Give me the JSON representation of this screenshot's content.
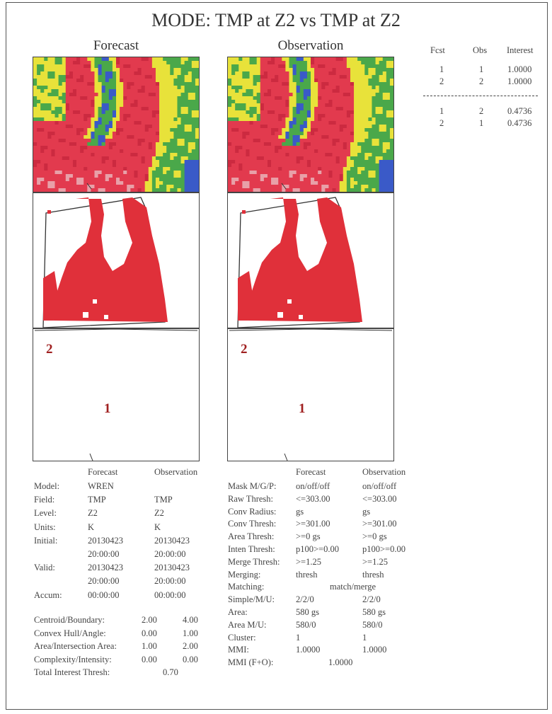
{
  "title": "MODE: TMP at Z2 vs TMP at Z2",
  "panels": {
    "forecast_title": "Forecast",
    "observation_title": "Observation"
  },
  "object_labels": {
    "forecast": [
      "2",
      "1"
    ],
    "observation": [
      "2",
      "1"
    ]
  },
  "interest_table": {
    "headers": [
      "Fcst",
      "Obs",
      "Interest"
    ],
    "matched": [
      [
        "1",
        "1",
        "1.0000"
      ],
      [
        "2",
        "2",
        "1.0000"
      ]
    ],
    "unmatched": [
      [
        "1",
        "2",
        "0.4736"
      ],
      [
        "2",
        "1",
        "0.4736"
      ]
    ]
  },
  "left_table": {
    "col_headers": [
      "Forecast",
      "Observation"
    ],
    "rows": [
      [
        "Model:",
        "WREN",
        ""
      ],
      [
        "Field:",
        "TMP",
        "TMP"
      ],
      [
        "Level:",
        "Z2",
        "Z2"
      ],
      [
        "Units:",
        "K",
        "K"
      ],
      [
        "Initial:",
        "20130423",
        "20130423"
      ],
      [
        "",
        "20:00:00",
        "20:00:00"
      ],
      [
        "Valid:",
        "20130423",
        "20130423"
      ],
      [
        "",
        "20:00:00",
        "20:00:00"
      ],
      [
        "Accum:",
        "00:00:00",
        "00:00:00"
      ]
    ],
    "weights": [
      [
        "Centroid/Boundary:",
        "2.00",
        "4.00"
      ],
      [
        "Convex Hull/Angle:",
        "0.00",
        "1.00"
      ],
      [
        "Area/Intersection Area:",
        "1.00",
        "2.00"
      ],
      [
        "Complexity/Intensity:",
        "0.00",
        "0.00"
      ]
    ],
    "total_interest": [
      "Total Interest Thresh:",
      "0.70"
    ]
  },
  "right_table": {
    "col_headers": [
      "Forecast",
      "Observation"
    ],
    "rows": [
      [
        "Mask M/G/P:",
        "on/off/off",
        "on/off/off"
      ],
      [
        "Raw Thresh:",
        "<=303.00",
        "<=303.00"
      ],
      [
        "Conv Radius:",
        "gs",
        "gs"
      ],
      [
        "Conv Thresh:",
        ">=301.00",
        ">=301.00"
      ],
      [
        "Area Thresh:",
        ">=0 gs",
        ">=0 gs"
      ],
      [
        "Inten Thresh:",
        "p100>=0.00",
        "p100>=0.00"
      ],
      [
        "Merge Thresh:",
        ">=1.25",
        ">=1.25"
      ],
      [
        "Merging:",
        "thresh",
        "thresh"
      ],
      [
        "Matching:",
        "match/merge",
        ""
      ],
      [
        "Simple/M/U:",
        "2/2/0",
        "2/2/0"
      ],
      [
        "Area:",
        "580 gs",
        "580 gs"
      ],
      [
        "Area M/U:",
        "580/0",
        "580/0"
      ],
      [
        "Cluster:",
        "1",
        "1"
      ],
      [
        "MMI:",
        "1.0000",
        "1.0000"
      ],
      [
        "MMI (F+O):",
        "1.0000",
        ""
      ]
    ]
  },
  "colors": {
    "object": "#e0303a",
    "object_label": "#a02020",
    "field_red": "#e23a4e",
    "field_yellow": "#e8e23a",
    "field_green": "#4aa84a",
    "field_blue": "#3a5ac8"
  }
}
